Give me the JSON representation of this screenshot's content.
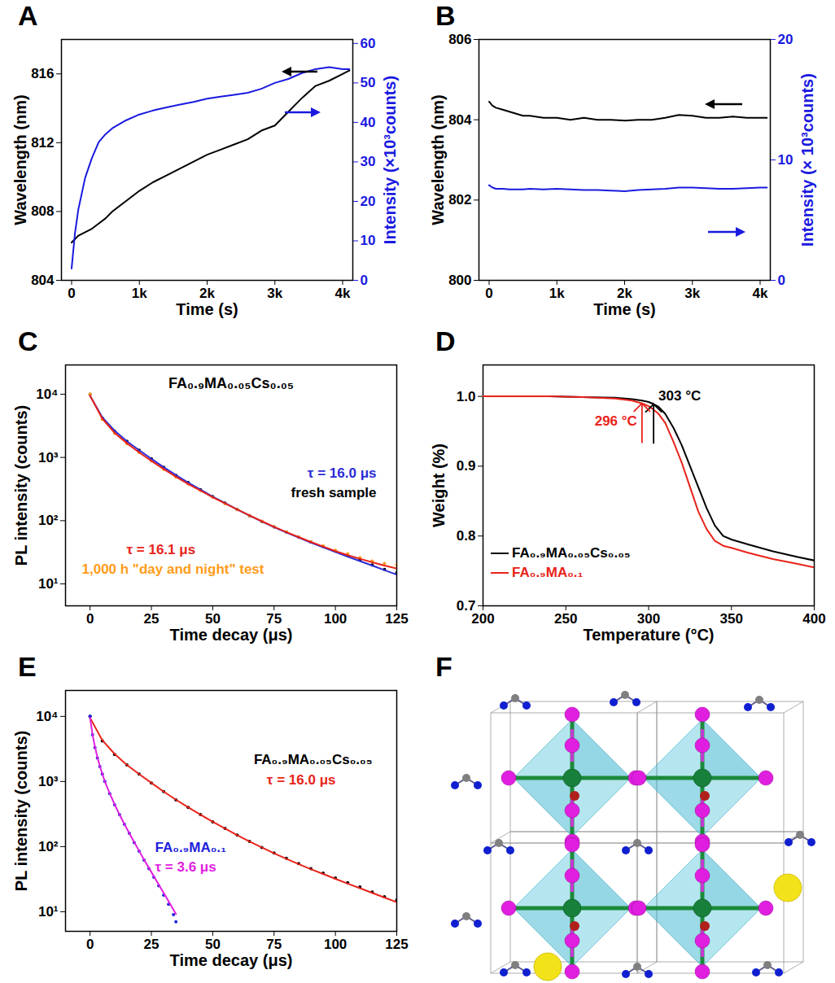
{
  "chart_data": [
    {
      "panel_label": "A",
      "type": "line",
      "x_label": "Time (s)",
      "y_label": "Wavelength (nm)",
      "y2_label": "Intensity (×10³counts)",
      "xlim": [
        -150,
        4150
      ],
      "xticks": [
        0,
        {
          "value": 1000,
          "label": "1k"
        },
        {
          "value": 2000,
          "label": "2k"
        },
        {
          "value": 3000,
          "label": "3k"
        },
        {
          "value": 4000,
          "label": "4k"
        }
      ],
      "ylim": [
        804,
        818
      ],
      "yticks": [
        804,
        808,
        812,
        816
      ],
      "y2lim": [
        0,
        61
      ],
      "y2ticks": [
        0,
        10,
        20,
        30,
        40,
        50,
        60
      ],
      "x": [
        0,
        50,
        100,
        200,
        300,
        400,
        500,
        600,
        800,
        1000,
        1200,
        1400,
        1600,
        1800,
        2000,
        2200,
        2400,
        2600,
        2800,
        3000,
        3200,
        3400,
        3600,
        3800,
        4000,
        4100
      ],
      "series": [
        {
          "color": "#000000",
          "values": [
            806.2,
            806.4,
            806.6,
            806.8,
            807.0,
            807.3,
            807.6,
            808.0,
            808.6,
            809.2,
            809.7,
            810.1,
            810.5,
            810.9,
            811.3,
            811.6,
            811.9,
            812.2,
            812.7,
            813.0,
            813.8,
            814.6,
            815.3,
            815.6,
            816.0,
            816.2
          ]
        },
        {
          "color": "#1a1ae0",
          "axis": "y2",
          "values": [
            3,
            12,
            18,
            26,
            31,
            35,
            37,
            38.5,
            40.5,
            42,
            43,
            43.8,
            44.5,
            45.2,
            46,
            46.5,
            47,
            47.5,
            48.5,
            50,
            51,
            52.5,
            53.5,
            54,
            53.5,
            53.5
          ]
        }
      ]
    },
    {
      "panel_label": "B",
      "type": "line",
      "x_label": "Time (s)",
      "y_label": "Wavelength (nm)",
      "y2_label": "Intensity (× 10³counts)",
      "xlim": [
        -150,
        4150
      ],
      "xticks": [
        0,
        {
          "value": 1000,
          "label": "1k"
        },
        {
          "value": 2000,
          "label": "2k"
        },
        {
          "value": 3000,
          "label": "3k"
        },
        {
          "value": 4000,
          "label": "4k"
        }
      ],
      "ylim": [
        800,
        806
      ],
      "yticks": [
        800,
        802,
        804,
        806
      ],
      "y2lim": [
        0,
        20
      ],
      "y2ticks": [
        0,
        10,
        20
      ],
      "x": [
        0,
        50,
        100,
        200,
        300,
        400,
        500,
        600,
        800,
        1000,
        1200,
        1400,
        1600,
        1800,
        2000,
        2200,
        2400,
        2600,
        2800,
        3000,
        3200,
        3400,
        3600,
        3800,
        4000,
        4100
      ],
      "series": [
        {
          "color": "#000000",
          "values": [
            804.45,
            804.35,
            804.3,
            804.25,
            804.2,
            804.15,
            804.1,
            804.1,
            804.05,
            804.05,
            804.0,
            804.05,
            804.0,
            804.0,
            803.98,
            804.0,
            804.0,
            804.05,
            804.12,
            804.1,
            804.05,
            804.05,
            804.08,
            804.05,
            804.05,
            804.05
          ]
        },
        {
          "color": "#1a1ae0",
          "axis": "y2",
          "values": [
            7.9,
            7.7,
            7.6,
            7.6,
            7.55,
            7.55,
            7.55,
            7.6,
            7.55,
            7.6,
            7.55,
            7.5,
            7.5,
            7.45,
            7.4,
            7.5,
            7.55,
            7.6,
            7.7,
            7.7,
            7.65,
            7.6,
            7.6,
            7.65,
            7.7,
            7.7
          ]
        }
      ]
    },
    {
      "panel_label": "C",
      "type": "scatter",
      "title": "FA₀.₉MA₀.₀₅Cs₀.₀₅",
      "log": "y",
      "x_label": "Time decay (μs)",
      "y_label": "PL intensity (counts)",
      "xlim": [
        -10,
        125
      ],
      "xticks": [
        0,
        25,
        50,
        75,
        100,
        125
      ],
      "ylim": [
        4.5,
        29000
      ],
      "yticks": [
        {
          "value": 10,
          "label": "10¹"
        },
        {
          "value": 100,
          "label": "10²"
        },
        {
          "value": 1000,
          "label": "10³"
        },
        {
          "value": 10000,
          "label": "10⁴"
        }
      ],
      "x": [
        0,
        5,
        10,
        15,
        20,
        25,
        30,
        35,
        40,
        45,
        50,
        55,
        60,
        65,
        70,
        75,
        80,
        85,
        90,
        95,
        100,
        105,
        110,
        115,
        120,
        125
      ],
      "series": [
        {
          "name": "fresh sample",
          "type": "scatter",
          "color": "#000000",
          "values": [
            10000,
            4200,
            2600,
            1800,
            1300,
            950,
            700,
            520,
            400,
            310,
            240,
            190,
            150,
            120,
            97,
            80,
            66,
            55,
            46,
            39,
            33,
            28,
            24,
            20,
            17,
            15
          ]
        },
        {
          "name": "1,000 h \"day and night\" test",
          "type": "scatter",
          "color": "#ff9c1a",
          "values": [
            10000,
            4000,
            2400,
            1650,
            1200,
            880,
            650,
            490,
            380,
            300,
            235,
            185,
            150,
            120,
            98,
            80,
            66,
            55,
            46,
            40,
            34,
            30,
            26,
            23,
            21,
            20
          ]
        },
        {
          "name": "τ = 16.0 μs",
          "type": "line",
          "color": "#2b2bd6",
          "values": [
            9500,
            4300,
            2650,
            1800,
            1300,
            950,
            700,
            525,
            400,
            310,
            240,
            190,
            150,
            120,
            97,
            79,
            65,
            54,
            45,
            38,
            32,
            27,
            23,
            19.5,
            16.5,
            14
          ]
        },
        {
          "name": "τ = 16.1 μs",
          "type": "line",
          "color": "#e8231a",
          "values": [
            9500,
            4100,
            2450,
            1680,
            1200,
            880,
            655,
            495,
            380,
            298,
            235,
            187,
            150,
            121,
            98,
            80,
            66,
            55,
            46,
            39,
            33,
            28.5,
            25,
            22,
            19.5,
            17.5
          ]
        }
      ]
    },
    {
      "panel_label": "D",
      "type": "line",
      "legend": "lower left",
      "x_label": "Temperature (°C)",
      "y_label": "Weight (%)",
      "xlim": [
        200,
        400
      ],
      "xticks": [
        200,
        250,
        300,
        350,
        400
      ],
      "ylim": [
        0.7,
        1.045
      ],
      "yticks": [
        0.7,
        0.8,
        0.9,
        {
          "value": 1.0,
          "label": "1.0"
        }
      ],
      "x": [
        200,
        220,
        240,
        260,
        280,
        290,
        296,
        300,
        303,
        306,
        310,
        315,
        320,
        325,
        330,
        335,
        340,
        345,
        350,
        360,
        375,
        390,
        400
      ],
      "series": [
        {
          "name": "FA₀.₉MA₀.₀₅Cs₀.₀₅",
          "color": "#000000",
          "values": [
            1,
            1,
            1,
            0.999,
            0.998,
            0.996,
            0.994,
            0.992,
            0.989,
            0.985,
            0.975,
            0.955,
            0.93,
            0.9,
            0.87,
            0.84,
            0.815,
            0.8,
            0.795,
            0.788,
            0.778,
            0.77,
            0.765
          ]
        },
        {
          "name": "FA₀.₉MA₀.₁",
          "color": "#e8231a",
          "values": [
            1,
            1,
            1,
            0.999,
            0.997,
            0.994,
            0.99,
            0.986,
            0.981,
            0.975,
            0.962,
            0.935,
            0.905,
            0.87,
            0.835,
            0.81,
            0.793,
            0.786,
            0.783,
            0.776,
            0.767,
            0.76,
            0.755
          ]
        }
      ],
      "annotations": [
        {
          "text": "303 °C",
          "x": 303,
          "y": 0.989,
          "color": "#000000"
        },
        {
          "text": "296 °C",
          "x": 296,
          "y": 0.99,
          "color": "#e8231a"
        }
      ]
    },
    {
      "panel_label": "E",
      "type": "scatter",
      "log": "y",
      "x_label": "Time decay (μs)",
      "y_label": "PL intensity (counts)",
      "xlim": [
        -10,
        125
      ],
      "xticks": [
        0,
        25,
        50,
        75,
        100,
        125
      ],
      "ylim": [
        5,
        25000
      ],
      "yticks": [
        {
          "value": 10,
          "label": "10¹"
        },
        {
          "value": 100,
          "label": "10²"
        },
        {
          "value": 1000,
          "label": "10³"
        },
        {
          "value": 10000,
          "label": "10⁴"
        }
      ],
      "series": [
        {
          "name": "FA₀.₉MA₀.₀₅Cs₀.₀₅",
          "type": "scatter",
          "color": "#000000",
          "x": [
            0,
            5,
            10,
            15,
            20,
            25,
            30,
            35,
            40,
            45,
            50,
            55,
            60,
            65,
            70,
            75,
            80,
            85,
            90,
            95,
            100,
            105,
            110,
            115,
            120,
            125
          ],
          "values": [
            10000,
            4200,
            2600,
            1800,
            1300,
            950,
            700,
            520,
            400,
            310,
            240,
            190,
            150,
            120,
            97,
            80,
            66,
            55,
            46,
            39,
            33,
            28,
            24,
            20,
            17,
            15
          ]
        },
        {
          "name": "τ = 16.0 μs",
          "type": "line",
          "color": "#e8231a",
          "x": [
            0,
            5,
            10,
            15,
            20,
            25,
            30,
            35,
            40,
            45,
            50,
            55,
            60,
            65,
            70,
            75,
            80,
            85,
            90,
            95,
            100,
            105,
            110,
            115,
            120,
            125
          ],
          "values": [
            9500,
            4300,
            2650,
            1800,
            1300,
            950,
            700,
            525,
            400,
            310,
            240,
            190,
            150,
            120,
            97,
            79,
            65,
            54,
            45,
            38,
            32,
            27,
            23,
            19.5,
            16.5,
            14
          ]
        },
        {
          "name": "FA₀.₉MA₀.₁",
          "type": "scatter",
          "color": "#2222dd",
          "x": [
            0,
            1,
            2,
            3,
            4,
            5,
            6,
            8,
            10,
            12,
            14,
            16,
            18,
            20,
            22,
            24,
            26,
            28,
            30,
            32,
            34,
            35
          ],
          "values": [
            10000,
            5200,
            3300,
            2300,
            1700,
            1300,
            1000,
            650,
            440,
            310,
            220,
            160,
            115,
            85,
            62,
            46,
            34,
            25,
            18,
            13,
            9,
            7
          ]
        },
        {
          "name": "τ = 3.6 μs",
          "type": "line",
          "color": "#e020e0",
          "x": [
            0,
            1,
            2,
            3,
            4,
            5,
            6,
            8,
            10,
            12,
            14,
            16,
            18,
            20,
            22,
            24,
            26,
            28,
            30,
            32,
            34,
            35
          ],
          "values": [
            9500,
            5300,
            3400,
            2350,
            1720,
            1310,
            1010,
            660,
            445,
            310,
            222,
            160,
            117,
            86,
            63,
            47,
            35,
            26,
            19.5,
            14.5,
            10.7,
            9.2
          ]
        }
      ]
    }
  ],
  "diagram": {
    "panel_label": "F"
  }
}
